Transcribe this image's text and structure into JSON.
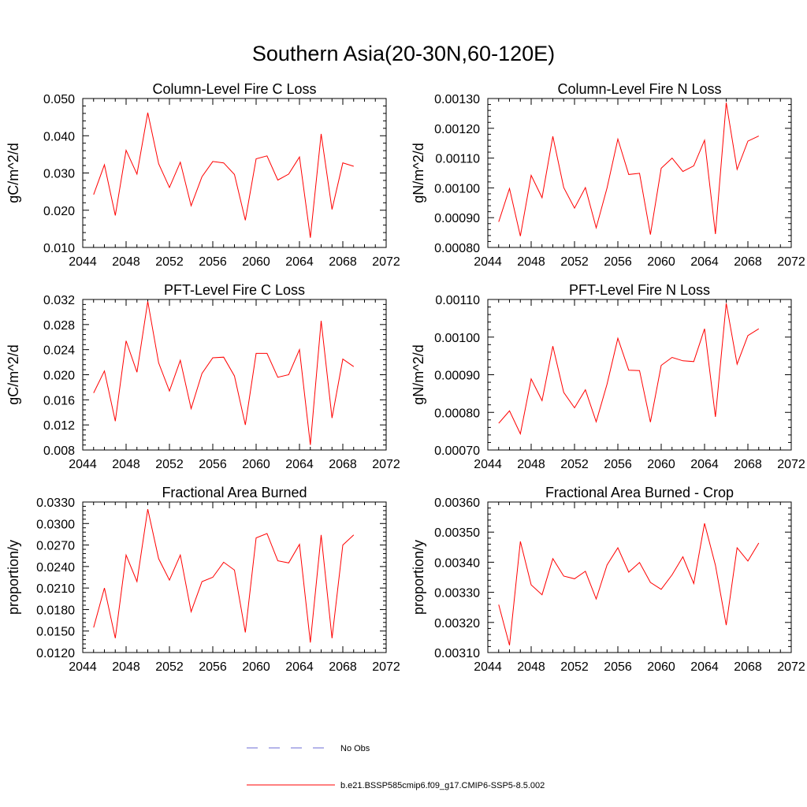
{
  "title": "Southern Asia(20-30N,60-120E)",
  "colors": {
    "model": "#ff0000",
    "obs": "#6b6bd6"
  },
  "legend": {
    "obs_label": "No Obs",
    "model_label": "b.e21.BSSP585cmip6.f09_g17.CMIP6-SSP5-8.5.002"
  },
  "chart_data": [
    {
      "type": "line",
      "title": "Column-Level Fire C Loss",
      "ylabel": "gC/m^2/d",
      "xlim": [
        2044,
        2072
      ],
      "ylim": [
        0.01,
        0.05
      ],
      "xticks": [
        "2044",
        "2048",
        "2052",
        "2056",
        "2060",
        "2064",
        "2068",
        "2072"
      ],
      "yticks": [
        "0.010",
        "0.020",
        "0.030",
        "0.040",
        "0.050"
      ],
      "x": [
        2045,
        2046,
        2047,
        2048,
        2049,
        2050,
        2051,
        2052,
        2053,
        2054,
        2055,
        2056,
        2057,
        2058,
        2059,
        2060,
        2061,
        2062,
        2063,
        2064,
        2065,
        2066,
        2067,
        2068,
        2069
      ],
      "series": [
        {
          "values": [
            0.0242,
            0.0322,
            0.0186,
            0.0361,
            0.0297,
            0.0462,
            0.0325,
            0.0261,
            0.0329,
            0.0212,
            0.029,
            0.0331,
            0.0327,
            0.0296,
            0.0173,
            0.0338,
            0.0346,
            0.0281,
            0.0297,
            0.0343,
            0.0126,
            0.0405,
            0.0202,
            0.0327,
            0.0318
          ]
        }
      ]
    },
    {
      "type": "line",
      "title": "Column-Level Fire N Loss",
      "ylabel": "gN/m^2/d",
      "xlim": [
        2044,
        2072
      ],
      "ylim": [
        0.0008,
        0.0013
      ],
      "xticks": [
        "2044",
        "2048",
        "2052",
        "2056",
        "2060",
        "2064",
        "2068",
        "2072"
      ],
      "yticks": [
        "0.00080",
        "0.00090",
        "0.00100",
        "0.00110",
        "0.00120",
        "0.00130"
      ],
      "x": [
        2045,
        2046,
        2047,
        2048,
        2049,
        2050,
        2051,
        2052,
        2053,
        2054,
        2055,
        2056,
        2057,
        2058,
        2059,
        2060,
        2061,
        2062,
        2063,
        2064,
        2065,
        2066,
        2067,
        2068,
        2069
      ],
      "series": [
        {
          "values": [
            0.000886,
            0.000998,
            0.000838,
            0.001042,
            0.000967,
            0.001173,
            0.001001,
            0.000932,
            0.001001,
            0.000866,
            0.001,
            0.001164,
            0.001045,
            0.001049,
            0.000843,
            0.001066,
            0.0011,
            0.001055,
            0.001074,
            0.00116,
            0.000845,
            0.001286,
            0.001062,
            0.001157,
            0.001174
          ]
        }
      ]
    },
    {
      "type": "line",
      "title": "PFT-Level Fire C Loss",
      "ylabel": "gC/m^2/d",
      "xlim": [
        2044,
        2072
      ],
      "ylim": [
        0.008,
        0.032
      ],
      "xticks": [
        "2044",
        "2048",
        "2052",
        "2056",
        "2060",
        "2064",
        "2068",
        "2072"
      ],
      "yticks": [
        "0.008",
        "0.012",
        "0.016",
        "0.020",
        "0.024",
        "0.028",
        "0.032"
      ],
      "x": [
        2045,
        2046,
        2047,
        2048,
        2049,
        2050,
        2051,
        2052,
        2053,
        2054,
        2055,
        2056,
        2057,
        2058,
        2059,
        2060,
        2061,
        2062,
        2063,
        2064,
        2065,
        2066,
        2067,
        2068,
        2069
      ],
      "series": [
        {
          "values": [
            0.0171,
            0.0206,
            0.0126,
            0.0254,
            0.0204,
            0.0317,
            0.0219,
            0.0174,
            0.0223,
            0.0146,
            0.0202,
            0.0227,
            0.0228,
            0.0198,
            0.012,
            0.0234,
            0.0234,
            0.0196,
            0.02,
            0.024,
            0.0088,
            0.0286,
            0.0131,
            0.0225,
            0.0213
          ]
        }
      ]
    },
    {
      "type": "line",
      "title": "PFT-Level Fire N Loss",
      "ylabel": "gN/m^2/d",
      "xlim": [
        2044,
        2072
      ],
      "ylim": [
        0.0007,
        0.0011
      ],
      "xticks": [
        "2044",
        "2048",
        "2052",
        "2056",
        "2060",
        "2064",
        "2068",
        "2072"
      ],
      "yticks": [
        "0.00070",
        "0.00080",
        "0.00090",
        "0.00100",
        "0.00110"
      ],
      "x": [
        2045,
        2046,
        2047,
        2048,
        2049,
        2050,
        2051,
        2052,
        2053,
        2054,
        2055,
        2056,
        2057,
        2058,
        2059,
        2060,
        2061,
        2062,
        2063,
        2064,
        2065,
        2066,
        2067,
        2068,
        2069
      ],
      "series": [
        {
          "values": [
            0.000771,
            0.000804,
            0.000743,
            0.000889,
            0.000831,
            0.000976,
            0.000853,
            0.000812,
            0.00086,
            0.000775,
            0.000875,
            0.000997,
            0.000912,
            0.000911,
            0.000774,
            0.000925,
            0.000946,
            0.000937,
            0.000935,
            0.001022,
            0.000788,
            0.00109,
            0.000928,
            0.001004,
            0.001022
          ]
        }
      ]
    },
    {
      "type": "line",
      "title": "Fractional Area Burned",
      "ylabel": "proportion/y",
      "xlim": [
        2044,
        2072
      ],
      "ylim": [
        0.012,
        0.033
      ],
      "xticks": [
        "2044",
        "2048",
        "2052",
        "2056",
        "2060",
        "2064",
        "2068",
        "2072"
      ],
      "yticks": [
        "0.0120",
        "0.0150",
        "0.0180",
        "0.0210",
        "0.0240",
        "0.0270",
        "0.0300",
        "0.0330"
      ],
      "x": [
        2045,
        2046,
        2047,
        2048,
        2049,
        2050,
        2051,
        2052,
        2053,
        2054,
        2055,
        2056,
        2057,
        2058,
        2059,
        2060,
        2061,
        2062,
        2063,
        2064,
        2065,
        2066,
        2067,
        2068,
        2069
      ],
      "series": [
        {
          "values": [
            0.0155,
            0.021,
            0.014,
            0.0256,
            0.0219,
            0.032,
            0.0251,
            0.0221,
            0.0256,
            0.0177,
            0.0219,
            0.0225,
            0.0246,
            0.0235,
            0.0148,
            0.028,
            0.0286,
            0.0248,
            0.0245,
            0.0271,
            0.0134,
            0.0284,
            0.014,
            0.027,
            0.0284
          ]
        }
      ]
    },
    {
      "type": "line",
      "title": "Fractional Area Burned - Crop",
      "ylabel": "proportion/y",
      "xlim": [
        2044,
        2072
      ],
      "ylim": [
        0.0031,
        0.0036
      ],
      "xticks": [
        "2044",
        "2048",
        "2052",
        "2056",
        "2060",
        "2064",
        "2068",
        "2072"
      ],
      "yticks": [
        "0.00310",
        "0.00320",
        "0.00330",
        "0.00340",
        "0.00350",
        "0.00360"
      ],
      "x": [
        2045,
        2046,
        2047,
        2048,
        2049,
        2050,
        2051,
        2052,
        2053,
        2054,
        2055,
        2056,
        2057,
        2058,
        2059,
        2060,
        2061,
        2062,
        2063,
        2064,
        2065,
        2066,
        2067,
        2068,
        2069
      ],
      "series": [
        {
          "values": [
            0.003259,
            0.003124,
            0.003469,
            0.003325,
            0.003292,
            0.003412,
            0.003354,
            0.003345,
            0.00337,
            0.003278,
            0.003391,
            0.003448,
            0.003367,
            0.003399,
            0.003333,
            0.00331,
            0.003358,
            0.003418,
            0.003329,
            0.003529,
            0.00339,
            0.003191,
            0.003448,
            0.003404,
            0.003464
          ]
        }
      ]
    }
  ]
}
